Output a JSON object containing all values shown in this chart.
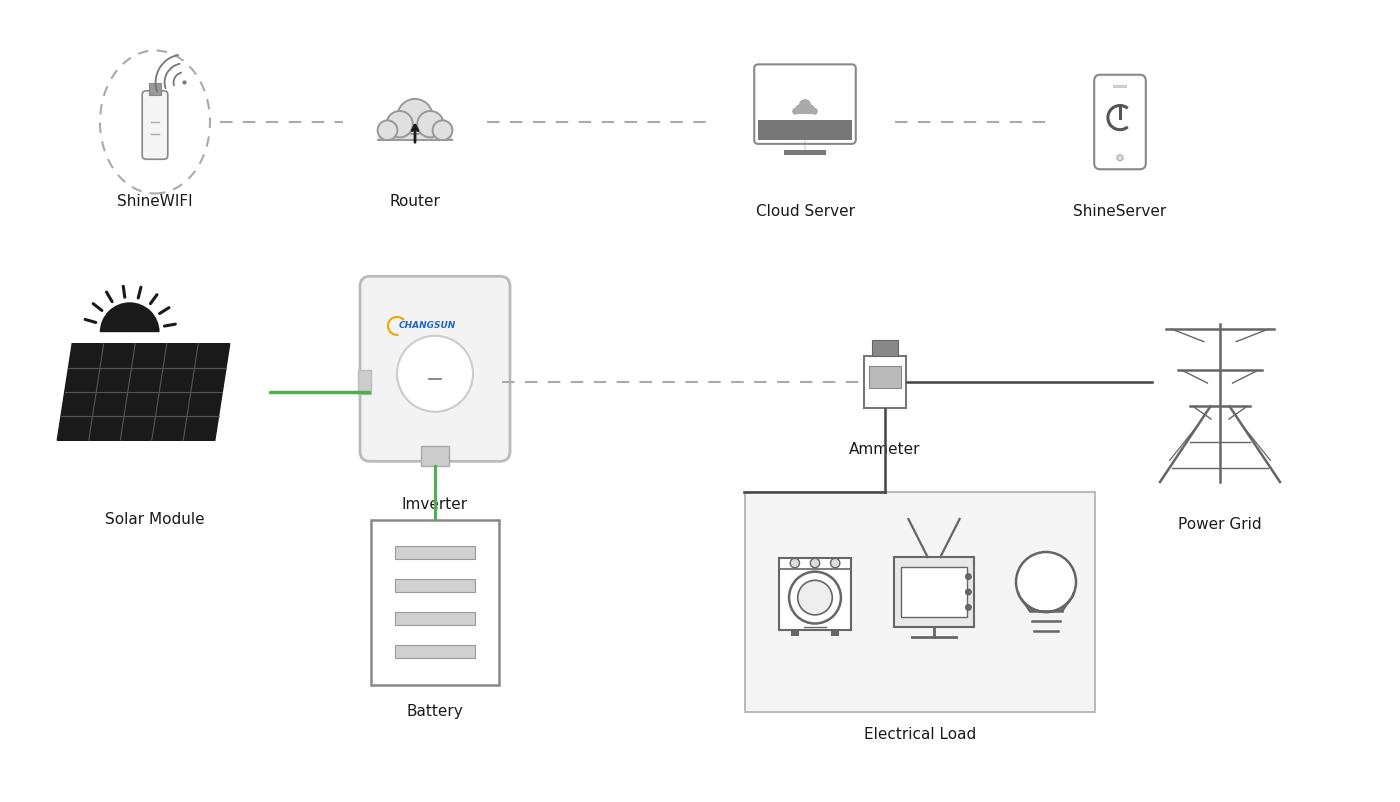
{
  "bg_color": "#ffffff",
  "icon_color": "#666666",
  "icon_color_dark": "#1a1a1a",
  "green_color": "#4db04a",
  "dashed_color": "#999999",
  "solid_color": "#444444",
  "label_color": "#1a1a1a",
  "changsun_blue": "#2266cc",
  "changsun_yellow": "#f0a500",
  "labels": {
    "shinewifi": "ShineWIFI",
    "router": "Router",
    "cloud_server": "Cloud Server",
    "shineserver": "ShineServer",
    "solar_module": "Solar Module",
    "inverter": "Imverter",
    "battery": "Battery",
    "electrical_load": "Electrical Load",
    "ammeter": "Ammeter",
    "power_grid": "Power Grid"
  }
}
